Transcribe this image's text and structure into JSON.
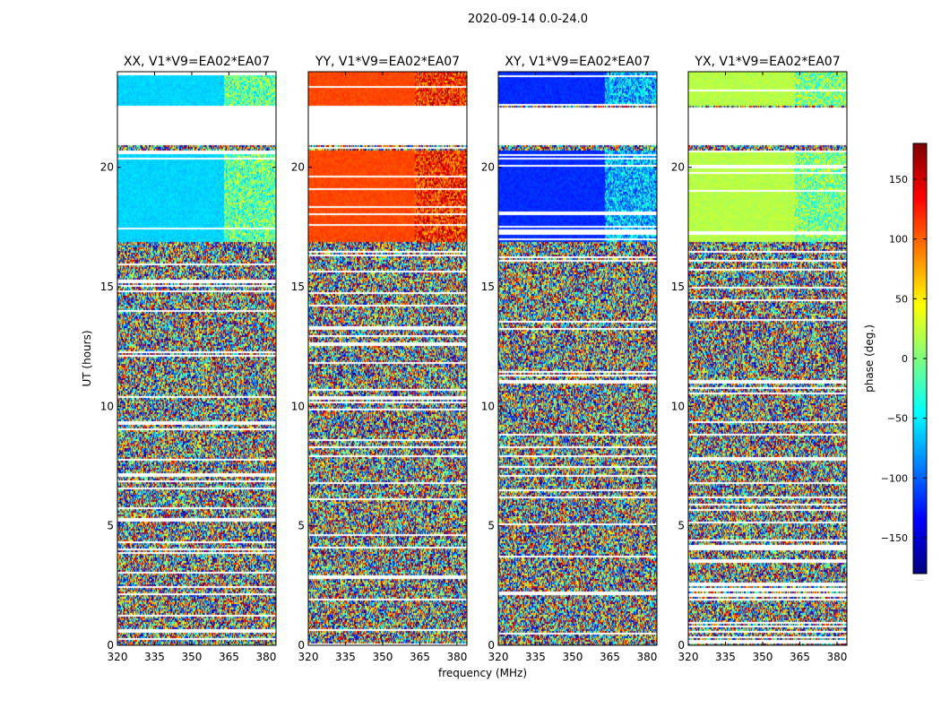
{
  "suptitle": "2020-09-14 0.0-24.0",
  "chart_data": {
    "type": "heatmap",
    "title": "2020-09-14 0.0-24.0",
    "xlabel": "frequency (MHz)",
    "ylabel": "UT (hours)",
    "xlim": [
      320,
      384
    ],
    "ylim": [
      0,
      24
    ],
    "x_ticks": [
      320,
      335,
      350,
      365,
      380
    ],
    "y_ticks": [
      0,
      5,
      10,
      15,
      20
    ],
    "colorbar": {
      "label": "phase (deg.)",
      "range": [
        -180,
        180
      ],
      "ticks": [
        150,
        100,
        50,
        0,
        -50,
        -100,
        -150
      ],
      "tick_labels": [
        "150",
        "100",
        "50",
        "0",
        "−50",
        "−100",
        "−150"
      ],
      "colormap": "jet",
      "footer": "....."
    },
    "panels": [
      {
        "title": "XX, V1*V9=EA02*EA07",
        "coherent_phase_deg": -60,
        "coherent_phase_high_band_deg": -10
      },
      {
        "title": "YY, V1*V9=EA02*EA07",
        "coherent_phase_deg": 110,
        "coherent_phase_high_band_deg": 120
      },
      {
        "title": "XY, V1*V9=EA02*EA07",
        "coherent_phase_deg": -120,
        "coherent_phase_high_band_deg": -70
      },
      {
        "title": "YX, V1*V9=EA02*EA07",
        "coherent_phase_deg": 20,
        "coherent_phase_high_band_deg": 0
      }
    ],
    "coherent_time_ranges_hours": [
      [
        16.9,
        20.7
      ],
      [
        22.6,
        24.0
      ]
    ],
    "flagged_time_ranges_hours": [
      [
        20.9,
        22.5
      ]
    ]
  }
}
